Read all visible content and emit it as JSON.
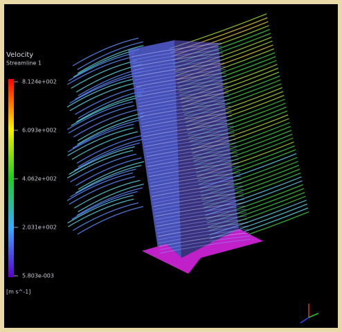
{
  "legend": {
    "title": "Velocity",
    "subtitle": "Streamline 1",
    "ticks": [
      "8.124e+002",
      "6.093e+002",
      "4.062e+002",
      "2.031e+002",
      "5.803e-003"
    ],
    "unit": "[m s^-1]"
  }
}
